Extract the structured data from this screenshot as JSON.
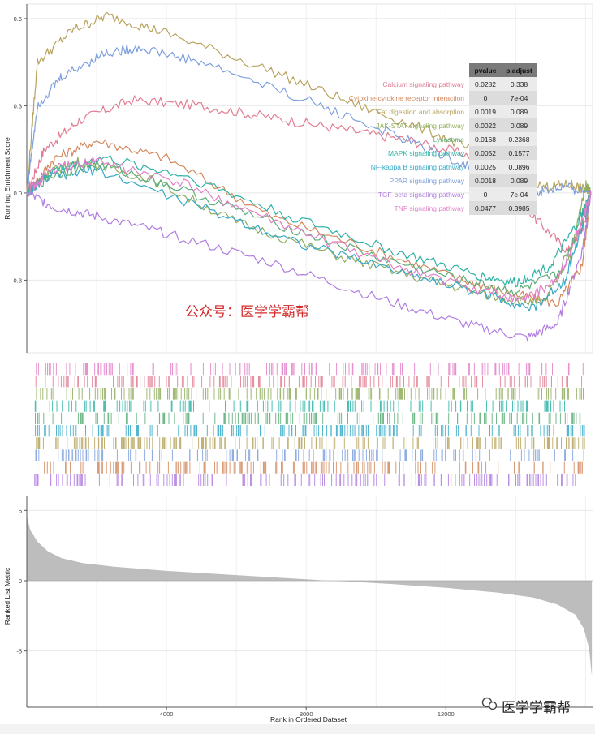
{
  "chart_data": [
    {
      "type": "line",
      "panel": "running-enrichment-score",
      "ylabel": "Running Enrichment Score",
      "ylim": [
        -0.55,
        0.65
      ],
      "yticks": [
        0.6,
        0.3,
        0.0,
        -0.3
      ],
      "ytick_labels": [
        "0.6",
        "0.3",
        "0.0",
        "-0.3"
      ],
      "xlim": [
        0,
        16200
      ],
      "grid": true,
      "series": [
        {
          "name": "Calcium signaling pathway",
          "color": "#e07b91",
          "pvalue": "0.0282",
          "padjust": "0.338",
          "points": [
            [
              0,
              0.0
            ],
            [
              500,
              0.15
            ],
            [
              1500,
              0.25
            ],
            [
              3000,
              0.32
            ],
            [
              5000,
              0.3
            ],
            [
              7000,
              0.26
            ],
            [
              9000,
              0.22
            ],
            [
              11000,
              0.18
            ],
            [
              13000,
              0.12
            ],
            [
              14500,
              -0.08
            ],
            [
              15500,
              -0.2
            ],
            [
              16000,
              -0.1
            ],
            [
              16150,
              0.0
            ]
          ]
        },
        {
          "name": "Cytokine-cytokine receptor interaction",
          "color": "#d2895e",
          "pvalue": "0",
          "padjust": "7e-04",
          "points": [
            [
              0,
              0.0
            ],
            [
              800,
              0.12
            ],
            [
              2000,
              0.18
            ],
            [
              4000,
              0.12
            ],
            [
              7000,
              -0.08
            ],
            [
              10000,
              -0.2
            ],
            [
              12500,
              -0.3
            ],
            [
              14000,
              -0.35
            ],
            [
              15200,
              -0.38
            ],
            [
              15900,
              -0.25
            ],
            [
              16150,
              0.0
            ]
          ]
        },
        {
          "name": "Fat digestion and absorption",
          "color": "#b7a35e",
          "pvalue": "0.0019",
          "padjust": "0.089",
          "points": [
            [
              0,
              0.0
            ],
            [
              300,
              0.45
            ],
            [
              1300,
              0.56
            ],
            [
              2300,
              0.61
            ],
            [
              4000,
              0.55
            ],
            [
              7000,
              0.42
            ],
            [
              9500,
              0.3
            ],
            [
              11800,
              0.2
            ],
            [
              13500,
              0.1
            ],
            [
              14800,
              0.02
            ],
            [
              15600,
              0.03
            ],
            [
              16150,
              0.0
            ]
          ]
        },
        {
          "name": "JAK-STAT signaling pathway",
          "color": "#8fad5c",
          "pvalue": "0.0022",
          "padjust": "0.089",
          "points": [
            [
              0,
              0.0
            ],
            [
              600,
              0.07
            ],
            [
              1500,
              0.11
            ],
            [
              3500,
              0.05
            ],
            [
              6000,
              -0.1
            ],
            [
              9000,
              -0.22
            ],
            [
              11500,
              -0.3
            ],
            [
              13500,
              -0.36
            ],
            [
              14800,
              -0.38
            ],
            [
              15600,
              -0.2
            ],
            [
              16000,
              0.03
            ],
            [
              16150,
              0.0
            ]
          ]
        },
        {
          "name": "Lysosome",
          "color": "#5cad77",
          "pvalue": "0.0168",
          "padjust": "0.2368",
          "points": [
            [
              0,
              0.0
            ],
            [
              700,
              0.06
            ],
            [
              2000,
              0.1
            ],
            [
              4000,
              0.03
            ],
            [
              7000,
              -0.1
            ],
            [
              10000,
              -0.22
            ],
            [
              12500,
              -0.3
            ],
            [
              14000,
              -0.34
            ],
            [
              15200,
              -0.28
            ],
            [
              15900,
              -0.1
            ],
            [
              16150,
              0.0
            ]
          ]
        },
        {
          "name": "MAPK signaling pathway",
          "color": "#2db3a6",
          "pvalue": "0.0052",
          "padjust": "0.1577",
          "points": [
            [
              0,
              0.0
            ],
            [
              800,
              0.08
            ],
            [
              2200,
              0.12
            ],
            [
              4500,
              0.06
            ],
            [
              7500,
              -0.08
            ],
            [
              10500,
              -0.2
            ],
            [
              12800,
              -0.28
            ],
            [
              14000,
              -0.31
            ],
            [
              15000,
              -0.25
            ],
            [
              15800,
              -0.1
            ],
            [
              16150,
              0.0
            ]
          ]
        },
        {
          "name": "NF-kappa B signaling pathway",
          "color": "#35a9c7",
          "pvalue": "0.0025",
          "padjust": "0.0896",
          "points": [
            [
              0,
              0.0
            ],
            [
              500,
              0.05
            ],
            [
              2000,
              0.08
            ],
            [
              5000,
              -0.05
            ],
            [
              8000,
              -0.18
            ],
            [
              11000,
              -0.28
            ],
            [
              13200,
              -0.35
            ],
            [
              14500,
              -0.4
            ],
            [
              15400,
              -0.3
            ],
            [
              16000,
              -0.08
            ],
            [
              16150,
              0.0
            ]
          ]
        },
        {
          "name": "PPAR signaling pathway",
          "color": "#7c9fdd",
          "pvalue": "0.0018",
          "padjust": "0.089",
          "points": [
            [
              0,
              0.0
            ],
            [
              300,
              0.3
            ],
            [
              1000,
              0.4
            ],
            [
              2200,
              0.48
            ],
            [
              3200,
              0.5
            ],
            [
              5000,
              0.45
            ],
            [
              8000,
              0.32
            ],
            [
              10500,
              0.2
            ],
            [
              12500,
              0.1
            ],
            [
              13800,
              0.04
            ],
            [
              14600,
              0.0
            ],
            [
              15400,
              0.02
            ],
            [
              16150,
              0.0
            ]
          ]
        },
        {
          "name": "TGF-beta signaling pathway",
          "color": "#b07de0",
          "pvalue": "0",
          "padjust": "7e-04",
          "points": [
            [
              0,
              0.0
            ],
            [
              800,
              -0.05
            ],
            [
              2000,
              -0.08
            ],
            [
              4000,
              -0.14
            ],
            [
              7000,
              -0.24
            ],
            [
              10000,
              -0.36
            ],
            [
              12500,
              -0.45
            ],
            [
              14300,
              -0.5
            ],
            [
              15200,
              -0.45
            ],
            [
              15900,
              -0.2
            ],
            [
              16150,
              0.0
            ]
          ]
        },
        {
          "name": "TNF signaling pathway",
          "color": "#e27fc8",
          "pvalue": "0.0477",
          "padjust": "0.3985",
          "points": [
            [
              0,
              0.0
            ],
            [
              700,
              0.08
            ],
            [
              2000,
              0.11
            ],
            [
              4500,
              0.03
            ],
            [
              7500,
              -0.12
            ],
            [
              10500,
              -0.25
            ],
            [
              12800,
              -0.33
            ],
            [
              14200,
              -0.37
            ],
            [
              15200,
              -0.3
            ],
            [
              15900,
              -0.1
            ],
            [
              16150,
              0.0
            ]
          ]
        }
      ],
      "table": {
        "headers": [
          "pvalue",
          "p.adjust"
        ]
      }
    },
    {
      "type": "barcode",
      "panel": "gene-hits",
      "rows": [
        {
          "name": "TNF signaling pathway",
          "color": "#e27fc8"
        },
        {
          "name": "Calcium signaling pathway",
          "color": "#e07b91"
        },
        {
          "name": "JAK-STAT signaling pathway",
          "color": "#8fad5c"
        },
        {
          "name": "MAPK signaling pathway",
          "color": "#2db3a6"
        },
        {
          "name": "Lysosome",
          "color": "#5cad77"
        },
        {
          "name": "NF-kappa B signaling pathway",
          "color": "#35a9c7"
        },
        {
          "name": "Fat digestion and absorption",
          "color": "#b7a35e"
        },
        {
          "name": "PPAR signaling pathway",
          "color": "#7c9fdd"
        },
        {
          "name": "Cytokine-cytokine receptor interaction",
          "color": "#d2895e"
        },
        {
          "name": "TGF-beta signaling pathway",
          "color": "#b07de0"
        }
      ]
    },
    {
      "type": "area",
      "panel": "ranked-list-metric",
      "ylabel": "Ranked List Metric",
      "xlabel": "Rank in Ordered Dataset",
      "ylim": [
        -9,
        6
      ],
      "yticks": [
        5,
        0,
        -5
      ],
      "ytick_labels": [
        "5",
        "0",
        "-5"
      ],
      "xlim": [
        0,
        16200
      ],
      "xticks": [
        4000,
        8000,
        12000
      ],
      "xtick_labels": [
        "4000",
        "8000",
        "12000"
      ],
      "fill": "#bdbdbd",
      "points": [
        [
          0,
          4.6
        ],
        [
          100,
          3.6
        ],
        [
          300,
          2.8
        ],
        [
          600,
          2.1
        ],
        [
          1000,
          1.6
        ],
        [
          1600,
          1.25
        ],
        [
          2500,
          1.0
        ],
        [
          4000,
          0.7
        ],
        [
          6000,
          0.4
        ],
        [
          8000,
          0.1
        ],
        [
          8600,
          0.0
        ],
        [
          9200,
          -0.05
        ],
        [
          10500,
          -0.25
        ],
        [
          12000,
          -0.5
        ],
        [
          13500,
          -0.85
        ],
        [
          14500,
          -1.2
        ],
        [
          15200,
          -1.7
        ],
        [
          15700,
          -2.4
        ],
        [
          15950,
          -3.4
        ],
        [
          16100,
          -4.8
        ],
        [
          16180,
          -6.8
        ]
      ]
    }
  ],
  "watermark": {
    "center_text": "公众号：医学学霸帮",
    "corner_text": "医学学霸帮",
    "center_color": "#d42a2a"
  }
}
